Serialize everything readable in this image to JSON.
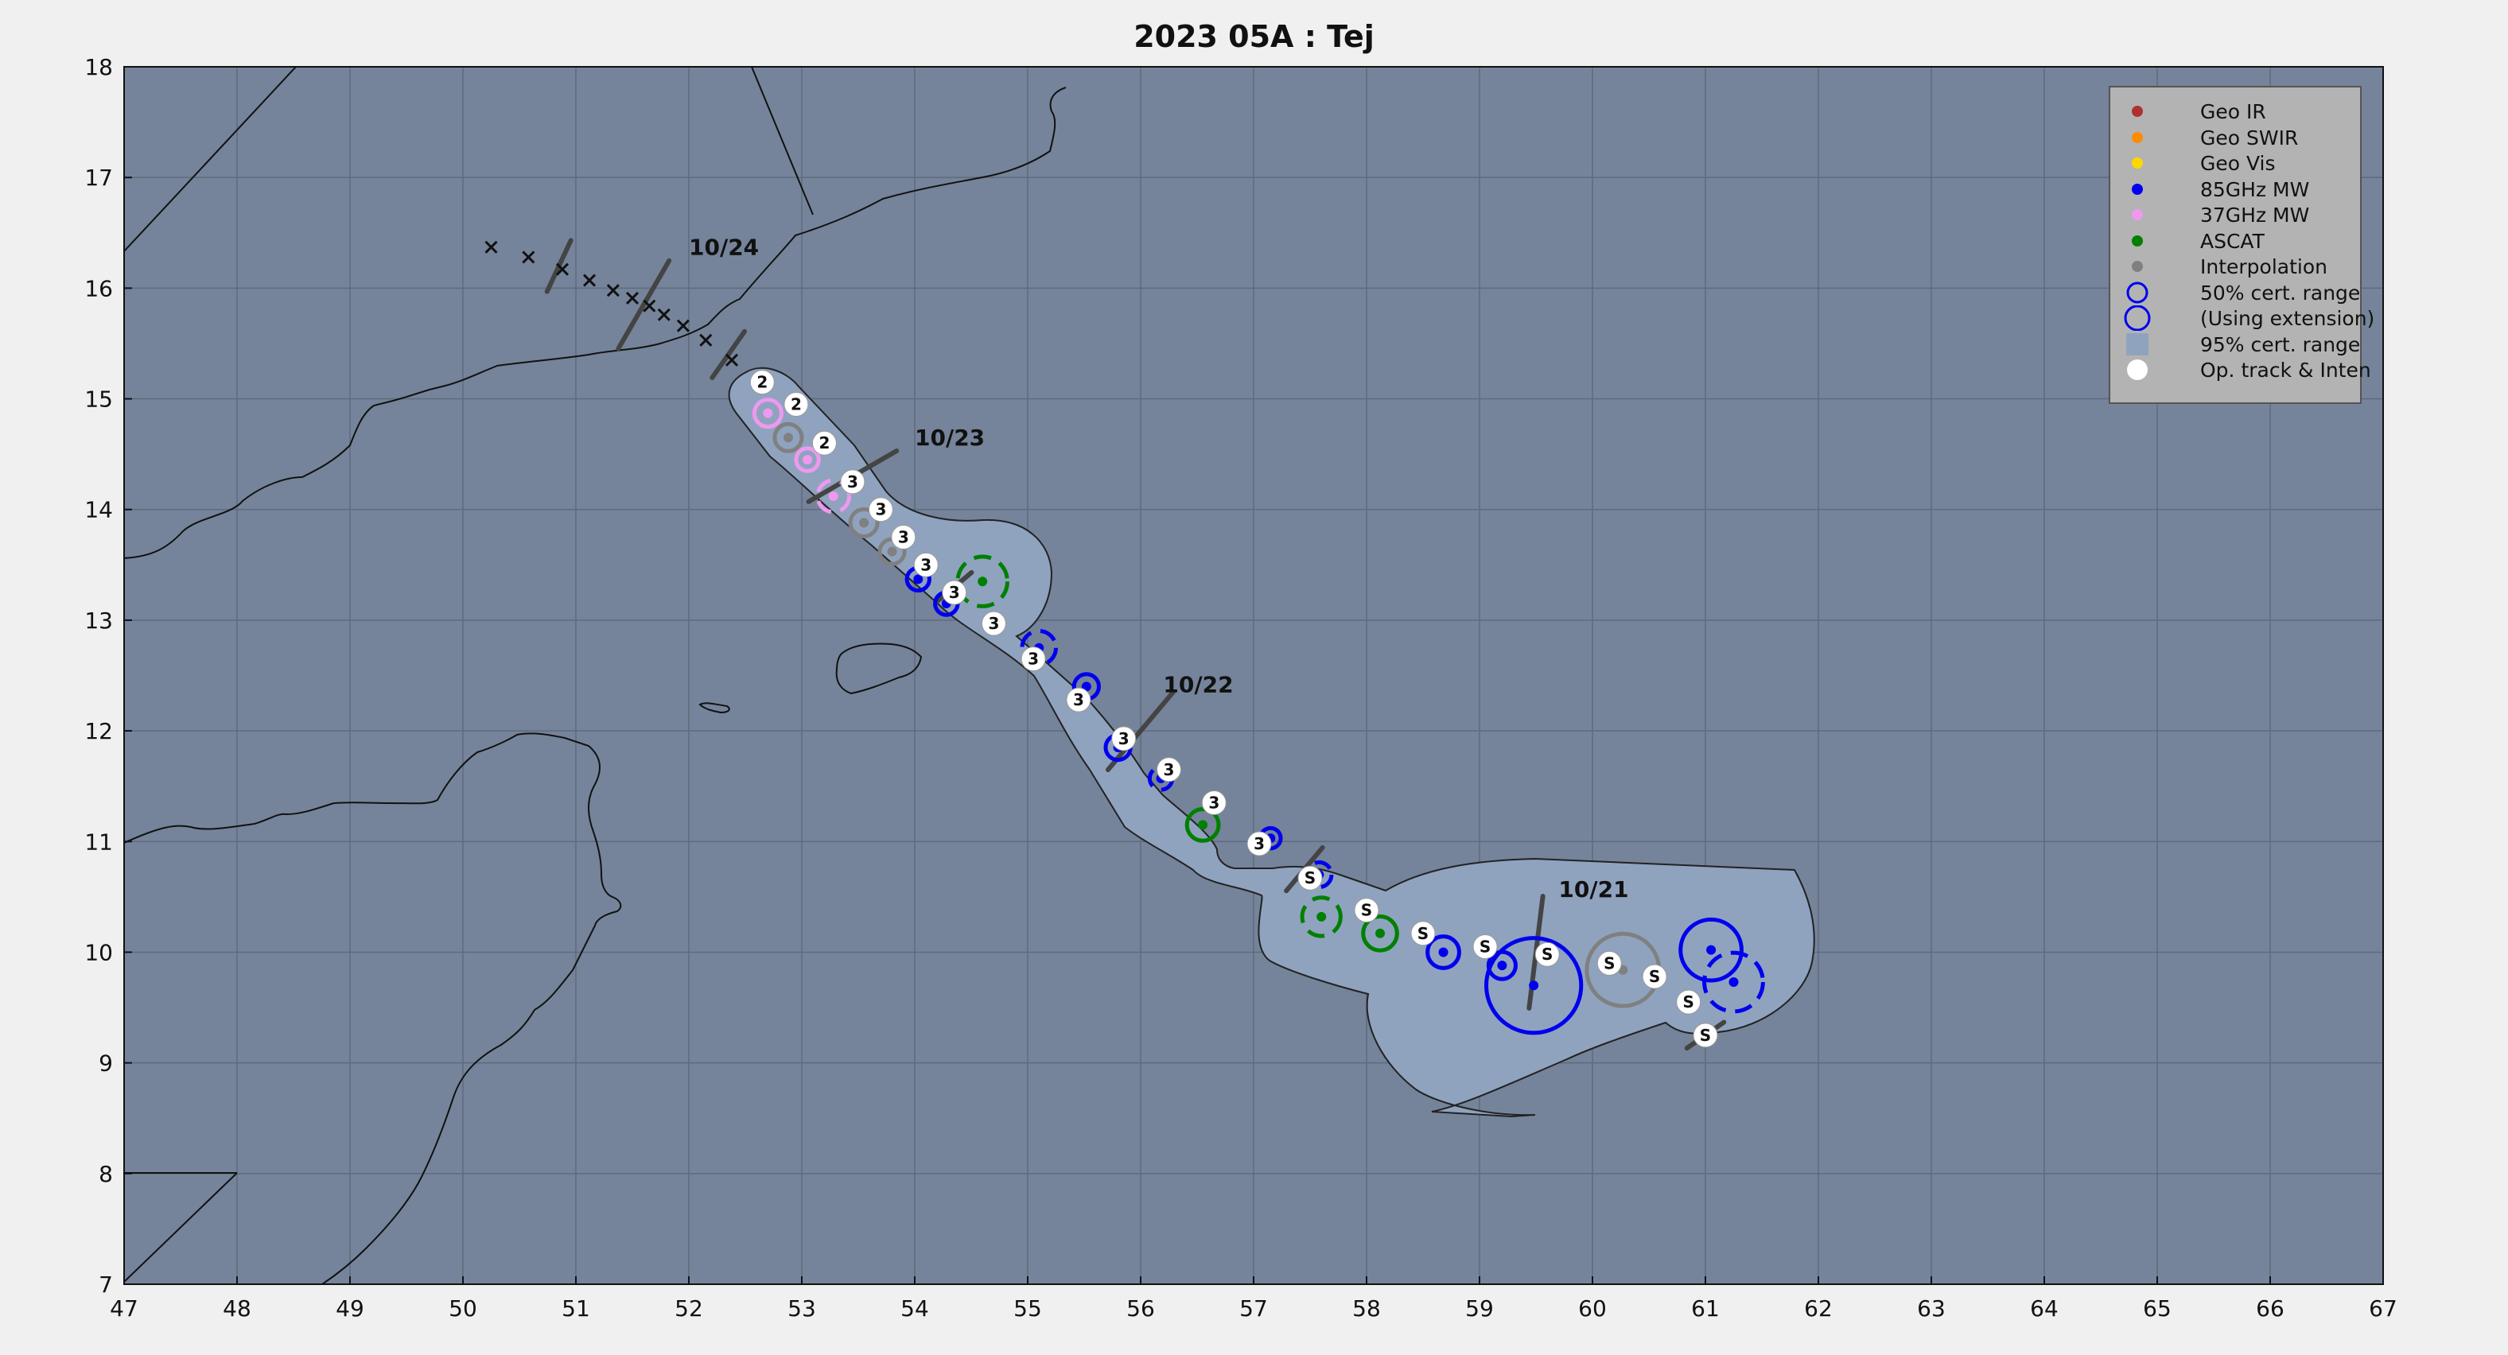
{
  "title": "2023  05A :  Tej",
  "axes": {
    "x_ticks": [
      "47",
      "48",
      "49",
      "50",
      "51",
      "52",
      "53",
      "54",
      "55",
      "56",
      "57",
      "58",
      "59",
      "60",
      "61",
      "62",
      "63",
      "64",
      "65",
      "66",
      "67"
    ],
    "y_ticks": [
      "7",
      "8",
      "9",
      "10",
      "11",
      "12",
      "13",
      "14",
      "15",
      "16",
      "17",
      "18"
    ],
    "x_range": [
      47,
      67
    ],
    "y_range": [
      7,
      18
    ],
    "grid": true
  },
  "legend": {
    "placement": "top-right",
    "items": [
      {
        "label": "Geo IR",
        "color": "#b03030",
        "symbol": "dot"
      },
      {
        "label": "Geo SWIR",
        "color": "#ff8c00",
        "symbol": "dot"
      },
      {
        "label": "Geo Vis",
        "color": "#ffd700",
        "symbol": "dot"
      },
      {
        "label": "85GHz MW",
        "color": "#0000ee",
        "symbol": "dot"
      },
      {
        "label": "37GHz MW",
        "color": "#ee99ee",
        "symbol": "dot"
      },
      {
        "label": "ASCAT",
        "color": "#008000",
        "symbol": "dot"
      },
      {
        "label": "Interpolation",
        "color": "#808080",
        "symbol": "dot"
      },
      {
        "label": "50% cert. range",
        "color": "#0000ee",
        "symbol": "circle"
      },
      {
        "label": "(Using extension)",
        "color": "#0000ee",
        "symbol": "circle-large"
      },
      {
        "label": "95% cert. range",
        "color": "#8fa3bf",
        "symbol": "rect"
      },
      {
        "label": "Op. track & Inten",
        "color": "#ffffff",
        "symbol": "white-dot"
      }
    ]
  },
  "colors": {
    "sea": "#75849a",
    "cone": "#8fa3bf",
    "grid": "#5e6b7e",
    "coast": "#111111"
  },
  "date_labels": [
    {
      "text": "10/24",
      "lon": 52.0,
      "lat": 16.3
    },
    {
      "text": "10/23",
      "lon": 54.0,
      "lat": 14.58
    },
    {
      "text": "10/22",
      "lon": 56.2,
      "lat": 12.35
    },
    {
      "text": "10/21",
      "lon": 59.7,
      "lat": 10.5
    }
  ],
  "date_ticks": [
    {
      "lon": 51.6,
      "lat": 15.85,
      "half": 0.45,
      "angle": 60
    },
    {
      "lon": 53.45,
      "lat": 14.3,
      "half": 0.45,
      "angle": 30
    },
    {
      "lon": 56.0,
      "lat": 12.0,
      "half": 0.45,
      "angle": 50
    },
    {
      "lon": 59.5,
      "lat": 10.0,
      "half": 0.5,
      "angle": 83
    },
    {
      "lon": 50.85,
      "lat": 16.2,
      "half": 0.25,
      "angle": 65
    },
    {
      "lon": 52.35,
      "lat": 15.4,
      "half": 0.25,
      "angle": 55
    },
    {
      "lon": 54.35,
      "lat": 13.3,
      "half": 0.2,
      "angle": 40
    },
    {
      "lon": 57.45,
      "lat": 10.75,
      "half": 0.25,
      "angle": 50
    },
    {
      "lon": 61.0,
      "lat": 9.25,
      "half": 0.2,
      "angle": 35
    }
  ],
  "op_track": [
    {
      "lon": 52.65,
      "lat": 15.15,
      "label": "2"
    },
    {
      "lon": 52.95,
      "lat": 14.95,
      "label": "2"
    },
    {
      "lon": 53.2,
      "lat": 14.6,
      "label": "2"
    },
    {
      "lon": 53.45,
      "lat": 14.25,
      "label": "3"
    },
    {
      "lon": 53.7,
      "lat": 14.0,
      "label": "3"
    },
    {
      "lon": 53.9,
      "lat": 13.75,
      "label": "3"
    },
    {
      "lon": 54.1,
      "lat": 13.5,
      "label": "3"
    },
    {
      "lon": 54.35,
      "lat": 13.25,
      "label": "3"
    },
    {
      "lon": 54.7,
      "lat": 12.97,
      "label": "3"
    },
    {
      "lon": 55.05,
      "lat": 12.65,
      "label": "3"
    },
    {
      "lon": 55.45,
      "lat": 12.28,
      "label": "3"
    },
    {
      "lon": 55.85,
      "lat": 11.93,
      "label": "3"
    },
    {
      "lon": 56.25,
      "lat": 11.65,
      "label": "3"
    },
    {
      "lon": 56.65,
      "lat": 11.35,
      "label": "3"
    },
    {
      "lon": 57.05,
      "lat": 10.98,
      "label": "3"
    },
    {
      "lon": 57.5,
      "lat": 10.67,
      "label": "S"
    },
    {
      "lon": 58.0,
      "lat": 10.38,
      "label": "S"
    },
    {
      "lon": 58.5,
      "lat": 10.17,
      "label": "S"
    },
    {
      "lon": 59.05,
      "lat": 10.05,
      "label": "S"
    },
    {
      "lon": 59.6,
      "lat": 9.98,
      "label": "S"
    },
    {
      "lon": 60.15,
      "lat": 9.9,
      "label": "S"
    },
    {
      "lon": 60.55,
      "lat": 9.78,
      "label": "S"
    },
    {
      "lon": 60.85,
      "lat": 9.55,
      "label": "S"
    },
    {
      "lon": 61.0,
      "lat": 9.25,
      "label": "S"
    }
  ],
  "fixes": [
    {
      "type": "37GHz MW",
      "lon": 52.7,
      "lat": 14.87,
      "r": 0.12,
      "dashed": false
    },
    {
      "type": "Interpolation",
      "lon": 52.88,
      "lat": 14.65,
      "r": 0.12,
      "dashed": false
    },
    {
      "type": "37GHz MW",
      "lon": 53.05,
      "lat": 14.45,
      "r": 0.1,
      "dashed": false
    },
    {
      "type": "37GHz MW",
      "lon": 53.28,
      "lat": 14.12,
      "r": 0.14,
      "dashed": true
    },
    {
      "type": "Interpolation",
      "lon": 53.55,
      "lat": 13.88,
      "r": 0.12,
      "dashed": false
    },
    {
      "type": "Interpolation",
      "lon": 53.8,
      "lat": 13.62,
      "r": 0.11,
      "dashed": false
    },
    {
      "type": "85GHz MW",
      "lon": 54.03,
      "lat": 13.37,
      "r": 0.1,
      "dashed": false
    },
    {
      "type": "ASCAT",
      "lon": 54.6,
      "lat": 13.35,
      "r": 0.22,
      "dashed": true
    },
    {
      "type": "85GHz MW",
      "lon": 54.28,
      "lat": 13.15,
      "r": 0.1,
      "dashed": false
    },
    {
      "type": "85GHz MW",
      "lon": 55.1,
      "lat": 12.75,
      "r": 0.15,
      "dashed": true
    },
    {
      "type": "85GHz MW",
      "lon": 55.52,
      "lat": 12.4,
      "r": 0.11,
      "dashed": false
    },
    {
      "type": "85GHz MW",
      "lon": 55.8,
      "lat": 11.85,
      "r": 0.11,
      "dashed": false
    },
    {
      "type": "85GHz MW",
      "lon": 56.18,
      "lat": 11.57,
      "r": 0.1,
      "dashed": true
    },
    {
      "type": "ASCAT",
      "lon": 56.55,
      "lat": 11.15,
      "r": 0.14,
      "dashed": false
    },
    {
      "type": "85GHz MW",
      "lon": 57.15,
      "lat": 11.03,
      "r": 0.09,
      "dashed": false
    },
    {
      "type": "85GHz MW",
      "lon": 57.58,
      "lat": 10.7,
      "r": 0.11,
      "dashed": true
    },
    {
      "type": "ASCAT",
      "lon": 57.6,
      "lat": 10.32,
      "r": 0.17,
      "dashed": true
    },
    {
      "type": "ASCAT",
      "lon": 58.12,
      "lat": 10.17,
      "r": 0.15,
      "dashed": false
    },
    {
      "type": "85GHz MW",
      "lon": 58.68,
      "lat": 10.0,
      "r": 0.14,
      "dashed": false
    },
    {
      "type": "85GHz MW",
      "lon": 59.2,
      "lat": 9.88,
      "r": 0.12,
      "dashed": false
    },
    {
      "type": "85GHz MW",
      "lon": 59.48,
      "lat": 9.7,
      "r": 0.42,
      "dashed": false
    },
    {
      "type": "Interpolation",
      "lon": 60.27,
      "lat": 9.84,
      "r": 0.32,
      "dashed": false
    },
    {
      "type": "85GHz MW",
      "lon": 61.05,
      "lat": 10.02,
      "r": 0.27,
      "dashed": false
    },
    {
      "type": "85GHz MW",
      "lon": 61.25,
      "lat": 9.73,
      "r": 0.26,
      "dashed": true
    }
  ],
  "best_track_x": [
    {
      "lon": 50.25,
      "lat": 16.37
    },
    {
      "lon": 50.58,
      "lat": 16.28
    },
    {
      "lon": 50.88,
      "lat": 16.17
    },
    {
      "lon": 51.12,
      "lat": 16.07
    },
    {
      "lon": 51.33,
      "lat": 15.98
    },
    {
      "lon": 51.5,
      "lat": 15.91
    },
    {
      "lon": 51.65,
      "lat": 15.84
    },
    {
      "lon": 51.78,
      "lat": 15.76
    },
    {
      "lon": 51.95,
      "lat": 15.66
    },
    {
      "lon": 52.15,
      "lat": 15.53
    },
    {
      "lon": 52.38,
      "lat": 15.35
    }
  ]
}
